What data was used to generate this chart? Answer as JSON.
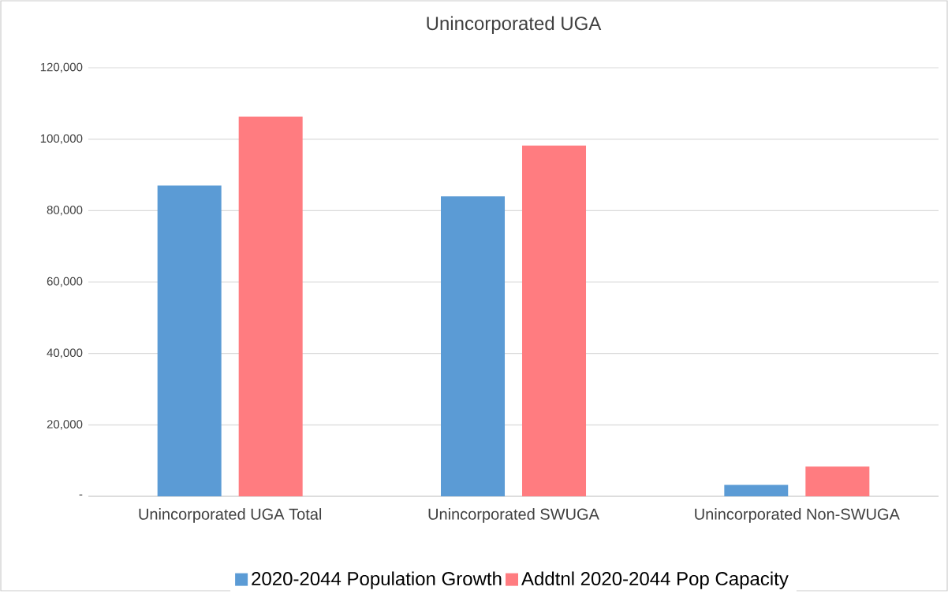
{
  "chart_data": {
    "type": "bar",
    "title": "Unincorporated UGA",
    "categories": [
      "Unincorporated UGA Total",
      "Unincorporated SWUGA",
      "Unincorporated Non-SWUGA"
    ],
    "series": [
      {
        "name": "2020-2044 Population Growth",
        "color": "#5b9bd5",
        "values": [
          87000,
          84000,
          3200
        ]
      },
      {
        "name": "Addtnl 2020-2044 Pop Capacity",
        "color": "#ff7c80",
        "values": [
          106300,
          98200,
          8300
        ]
      }
    ],
    "ylim": [
      0,
      120000
    ],
    "yticks": [
      {
        "value": 0,
        "label": "-"
      },
      {
        "value": 20000,
        "label": "20,000"
      },
      {
        "value": 40000,
        "label": "40,000"
      },
      {
        "value": 60000,
        "label": "60,000"
      },
      {
        "value": 80000,
        "label": "80,000"
      },
      {
        "value": 100000,
        "label": "100,000"
      },
      {
        "value": 120000,
        "label": "120,000"
      }
    ],
    "grid": "y",
    "legend": "bottom"
  }
}
